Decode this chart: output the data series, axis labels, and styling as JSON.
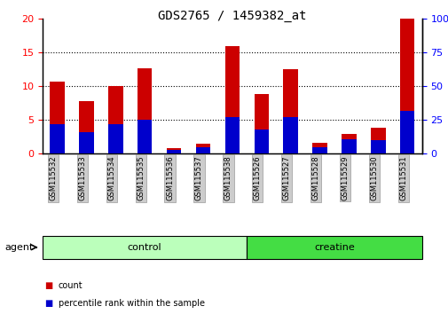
{
  "title": "GDS2765 / 1459382_at",
  "samples": [
    "GSM115532",
    "GSM115533",
    "GSM115534",
    "GSM115535",
    "GSM115536",
    "GSM115537",
    "GSM115538",
    "GSM115526",
    "GSM115527",
    "GSM115528",
    "GSM115529",
    "GSM115530",
    "GSM115531"
  ],
  "count_values": [
    10.7,
    7.8,
    10.0,
    12.7,
    0.8,
    1.5,
    15.9,
    8.9,
    12.5,
    1.6,
    2.9,
    3.9,
    20.0
  ],
  "percentile_values": [
    22,
    16,
    22,
    25,
    3,
    5,
    27,
    18,
    27,
    5,
    11,
    10,
    32
  ],
  "ylim_left": [
    0,
    20
  ],
  "ylim_right": [
    0,
    100
  ],
  "yticks_left": [
    0,
    5,
    10,
    15,
    20
  ],
  "yticks_right": [
    0,
    25,
    50,
    75,
    100
  ],
  "groups": [
    {
      "label": "control",
      "start": 0,
      "end": 7,
      "color": "#bbffbb"
    },
    {
      "label": "creatine",
      "start": 7,
      "end": 13,
      "color": "#44dd44"
    }
  ],
  "bar_color_red": "#cc0000",
  "bar_color_blue": "#0000cc",
  "bar_width": 0.5,
  "tick_label_bg": "#cccccc",
  "agent_label": "agent",
  "legend_count": "count",
  "legend_percentile": "percentile rank within the sample",
  "title_fontsize": 10,
  "axis_fontsize": 8,
  "grid_yticks": [
    5,
    10,
    15
  ]
}
